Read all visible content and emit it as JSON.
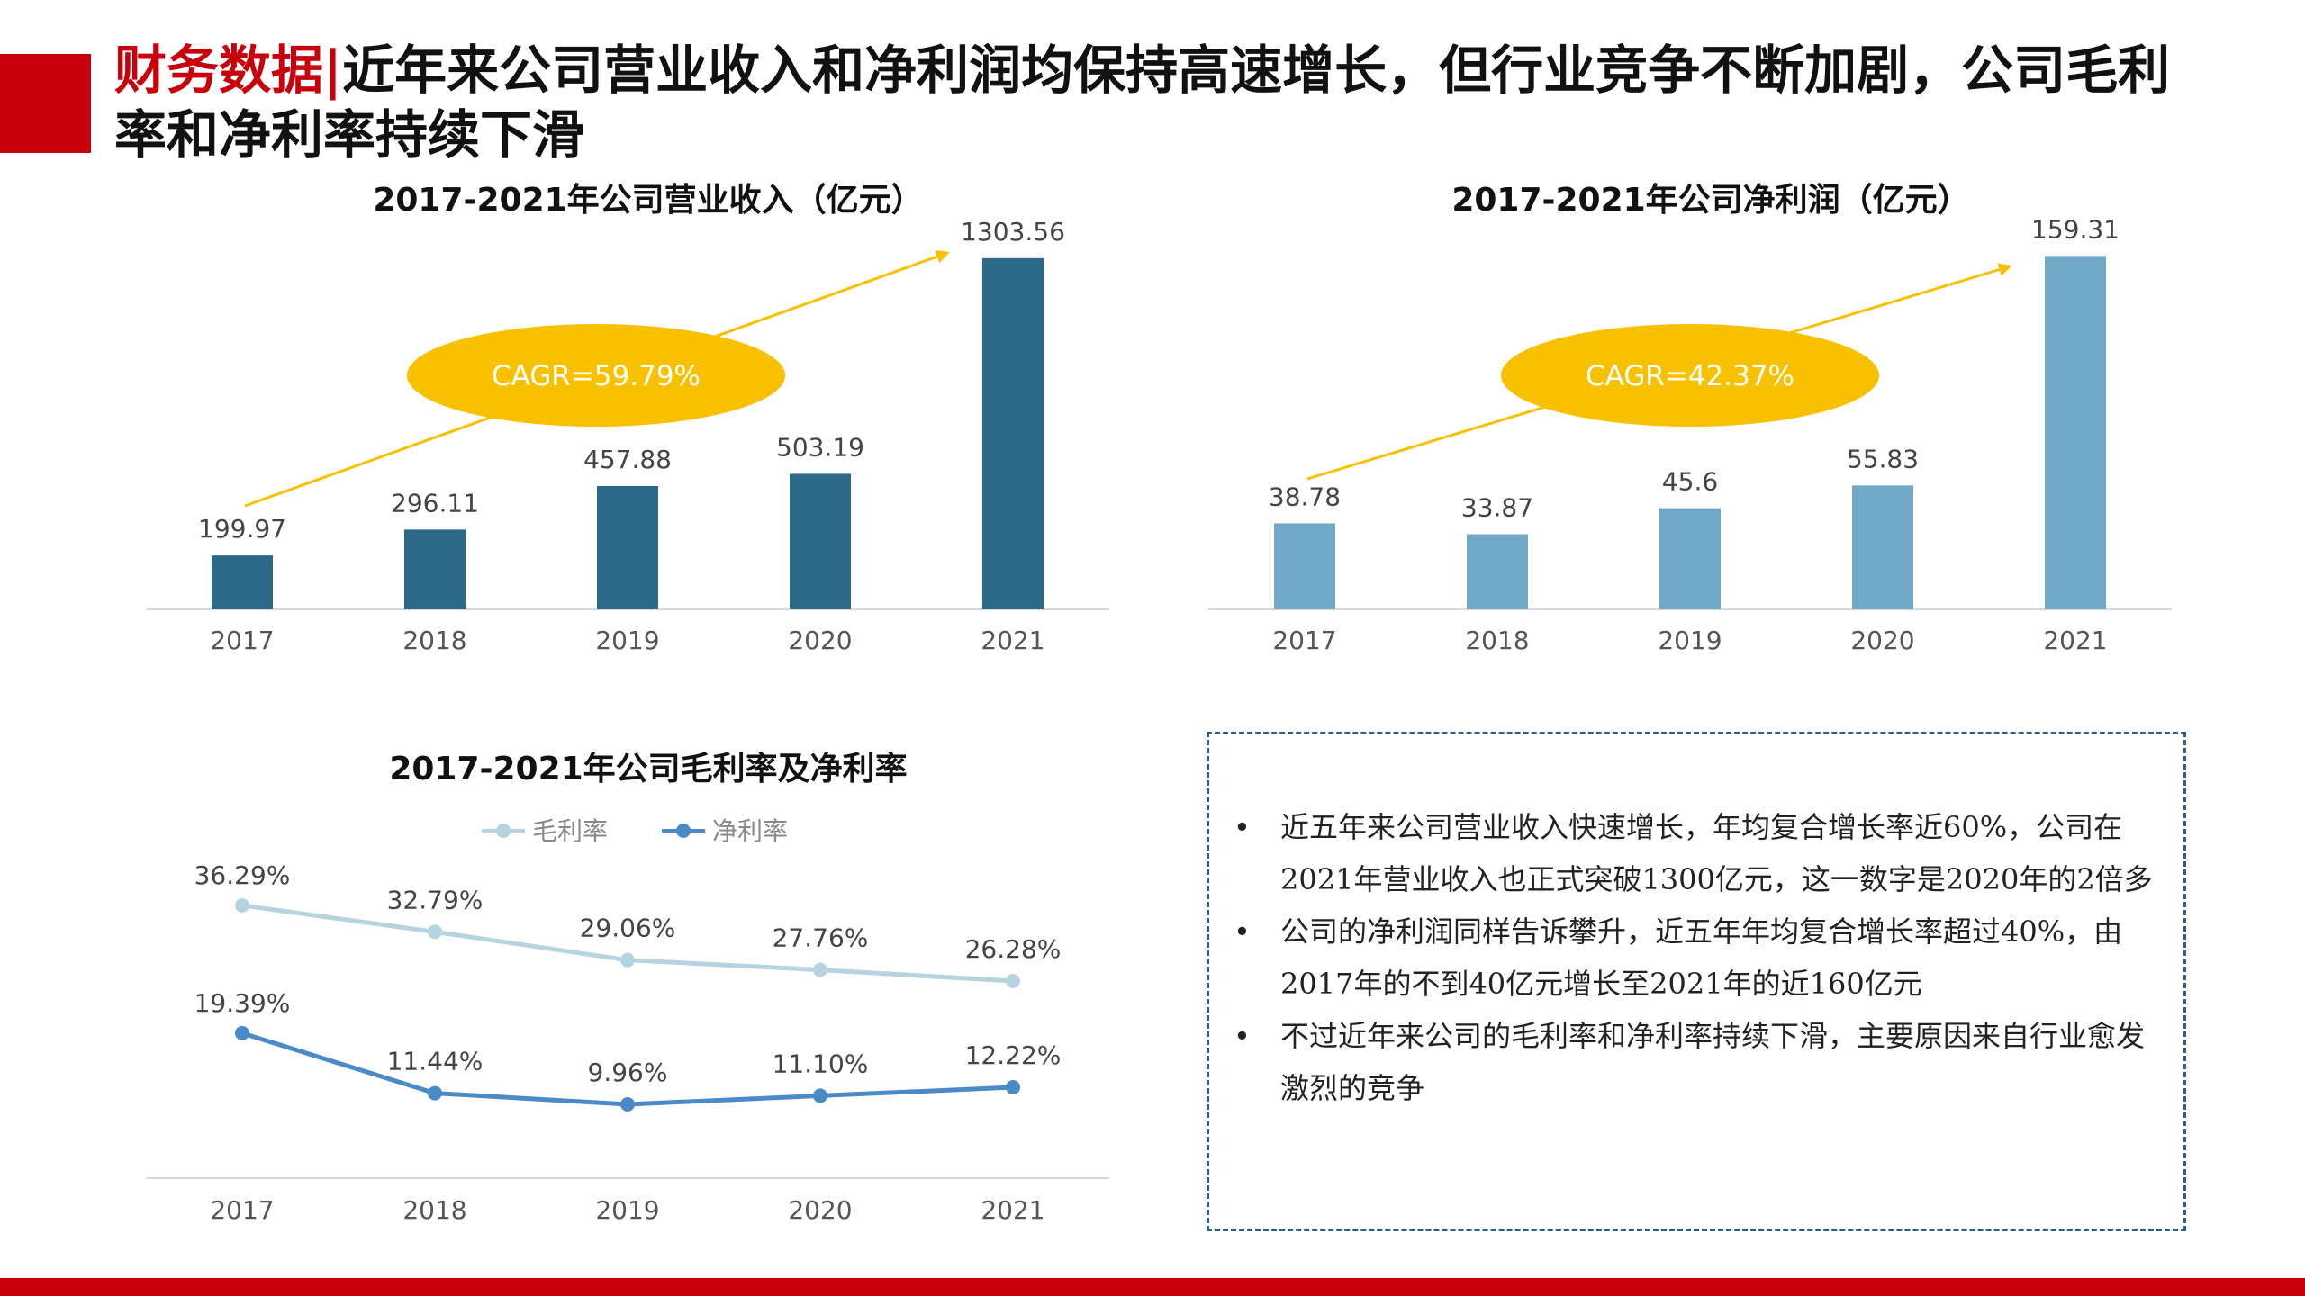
{
  "headline": {
    "tag": "财务数据",
    "separator": "|",
    "text": "近年来公司营业收入和净利润均保持高速增长，但行业竞争不断加剧，公司毛利率和净利率持续下滑"
  },
  "colors": {
    "brand_red": "#c8000b",
    "revenue_bar": "#2a6a88",
    "profit_bar": "#6fa9c6",
    "cagr_ellipse": "#f8c100",
    "gross_margin_line": "#b6d3e0",
    "net_margin_line": "#4a8ac6",
    "note_border": "#2d5f82"
  },
  "chart_data": [
    {
      "type": "bar",
      "title": "2017-2021年公司营业收入（亿元）",
      "categories": [
        "2017",
        "2018",
        "2019",
        "2020",
        "2021"
      ],
      "values": [
        199.97,
        296.11,
        457.88,
        503.19,
        1303.56
      ],
      "value_labels": [
        "199.97",
        "296.11",
        "457.88",
        "503.19",
        "1303.56"
      ],
      "annotation": "CAGR=59.79%",
      "ylim": [
        0,
        1400
      ],
      "grid": false
    },
    {
      "type": "bar",
      "title": "2017-2021年公司净利润（亿元）",
      "categories": [
        "2017",
        "2018",
        "2019",
        "2020",
        "2021"
      ],
      "values": [
        38.78,
        33.87,
        45.6,
        55.83,
        159.31
      ],
      "value_labels": [
        "38.78",
        "33.87",
        "45.6",
        "55.83",
        "159.31"
      ],
      "annotation": "CAGR=42.37%",
      "ylim": [
        0,
        170
      ],
      "grid": false
    },
    {
      "type": "line",
      "title": "2017-2021年公司毛利率及净利率",
      "categories": [
        "2017",
        "2018",
        "2019",
        "2020",
        "2021"
      ],
      "series": [
        {
          "name": "毛利率",
          "values": [
            36.29,
            32.79,
            29.06,
            27.76,
            26.28
          ],
          "labels": [
            "36.29%",
            "32.79%",
            "29.06%",
            "27.76%",
            "26.28%"
          ]
        },
        {
          "name": "净利率",
          "values": [
            19.39,
            11.44,
            9.96,
            11.1,
            12.22
          ],
          "labels": [
            "19.39%",
            "11.44%",
            "9.96%",
            "11.10%",
            "12.22%"
          ]
        }
      ],
      "legend": "top-center",
      "grid": false
    }
  ],
  "notes": {
    "bullet": "•",
    "items": [
      "近五年来公司营业收入快速增长，年均复合增长率近60%，公司在2021年营业收入也正式突破1300亿元，这一数字是2020年的2倍多",
      "公司的净利润同样告诉攀升，近五年年均复合增长率超过40%，由2017年的不到40亿元增长至2021年的近160亿元",
      "不过近年来公司的毛利率和净利率持续下滑，主要原因来自行业愈发激烈的竞争"
    ]
  }
}
